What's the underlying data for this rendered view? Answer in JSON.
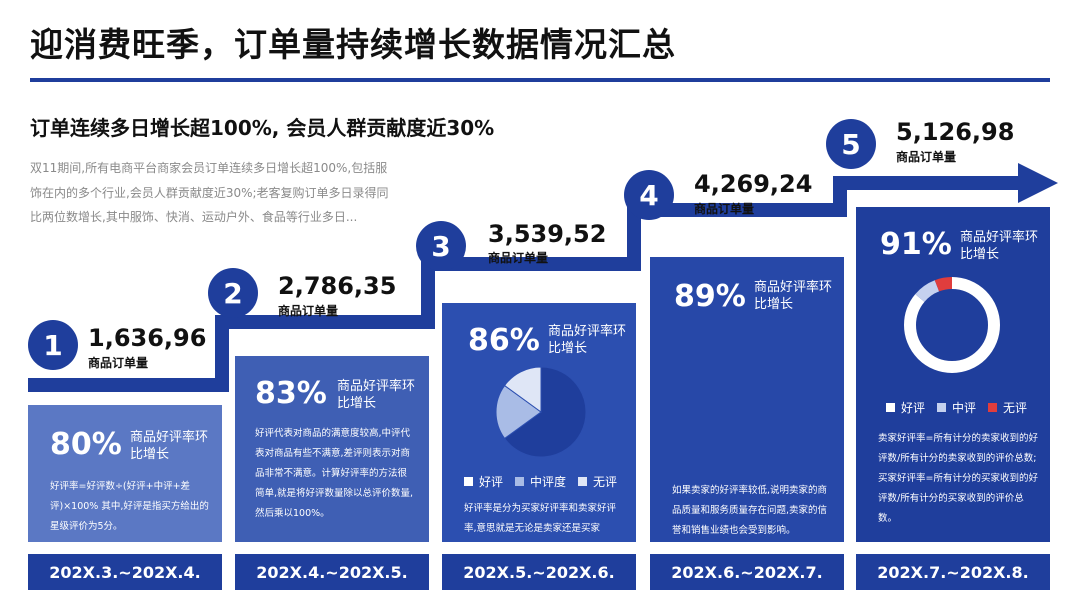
{
  "title": "迎消费旺季，订单量持续增长数据情况汇总",
  "subtitle": "订单连续多日增长超100%, 会员人群贡献度近30%",
  "intro": "双11期间,所有电商平台商家会员订单连续多日增长超100%,包括服饰在内的多个行业,会员人群贡献度近30%;老客复购订单多日录得同比两位数增长,其中服饰、快消、运动户外、食品等行业多日...",
  "colors": {
    "primary": "#1f3e9c",
    "panel1": "#5b78c4",
    "panel2": "#3f5fb4",
    "panel3": "#2c4fb0",
    "panel4": "#2748a8",
    "panel5": "#1f3e9c",
    "bad": "#e03d3d"
  },
  "stages": [
    {
      "number": "1",
      "orders": "1,636,96",
      "orders_label": "商品订单量",
      "rate": "80%",
      "rate_label": "商品好评率环比增长",
      "description": "好评率=好评数÷(好评+中评+差评)×100% 其中,好评是指买方给出的星级评价为5分。",
      "date": "202X.3.~202X.4."
    },
    {
      "number": "2",
      "orders": "2,786,35",
      "orders_label": "商品订单量",
      "rate": "83%",
      "rate_label": "商品好评率环比增长",
      "description": "好评代表对商品的满意度较高,中评代表对商品有些不满意,差评则表示对商品非常不满意。计算好评率的方法很简单,就是将好评数量除以总评价数量,然后乘以100%。",
      "date": "202X.4.~202X.5."
    },
    {
      "number": "3",
      "orders": "3,539,52",
      "orders_label": "商品订单量",
      "rate": "86%",
      "rate_label": "商品好评率环比增长",
      "description": "好评率是分为买家好评率和卖家好评率,意思就是无论是卖家还是买家",
      "date": "202X.5.~202X.6.",
      "pie": {
        "type": "pie",
        "slices": [
          {
            "name": "好评",
            "value": 65,
            "color": "#1f3e9c"
          },
          {
            "name": "中评度",
            "value": 20,
            "color": "#a9bce6"
          },
          {
            "name": "无评",
            "value": 15,
            "color": "#dfe6f6"
          }
        ]
      },
      "legend": [
        "好评",
        "中评度",
        "无评"
      ]
    },
    {
      "number": "4",
      "orders": "4,269,24",
      "orders_label": "商品订单量",
      "rate": "89%",
      "rate_label": "商品好评率环比增长",
      "description": "如果卖家的好评率较低,说明卖家的商品质量和服务质量存在问题,卖家的信誉和销售业绩也会受到影响。",
      "date": "202X.6.~202X.7."
    },
    {
      "number": "5",
      "orders": "5,126,98",
      "orders_label": "商品订单量",
      "rate": "91%",
      "rate_label": "商品好评率环比增长",
      "description": "卖家好评率=所有计分的卖家收到的好评数/所有计分的卖家收到的评价总数; 买家好评率=所有计分的买家收到的好评数/所有计分的买家收到的评价总数。",
      "date": "202X.7.~202X.8.",
      "donut": {
        "type": "pie",
        "slices": [
          {
            "name": "好评",
            "value": 86,
            "color": "#ffffff"
          },
          {
            "name": "中评",
            "value": 8,
            "color": "#c5d1ef"
          },
          {
            "name": "无评",
            "value": 6,
            "color": "#e03d3d"
          }
        ]
      },
      "legend": [
        "好评",
        "中评",
        "无评"
      ]
    }
  ]
}
